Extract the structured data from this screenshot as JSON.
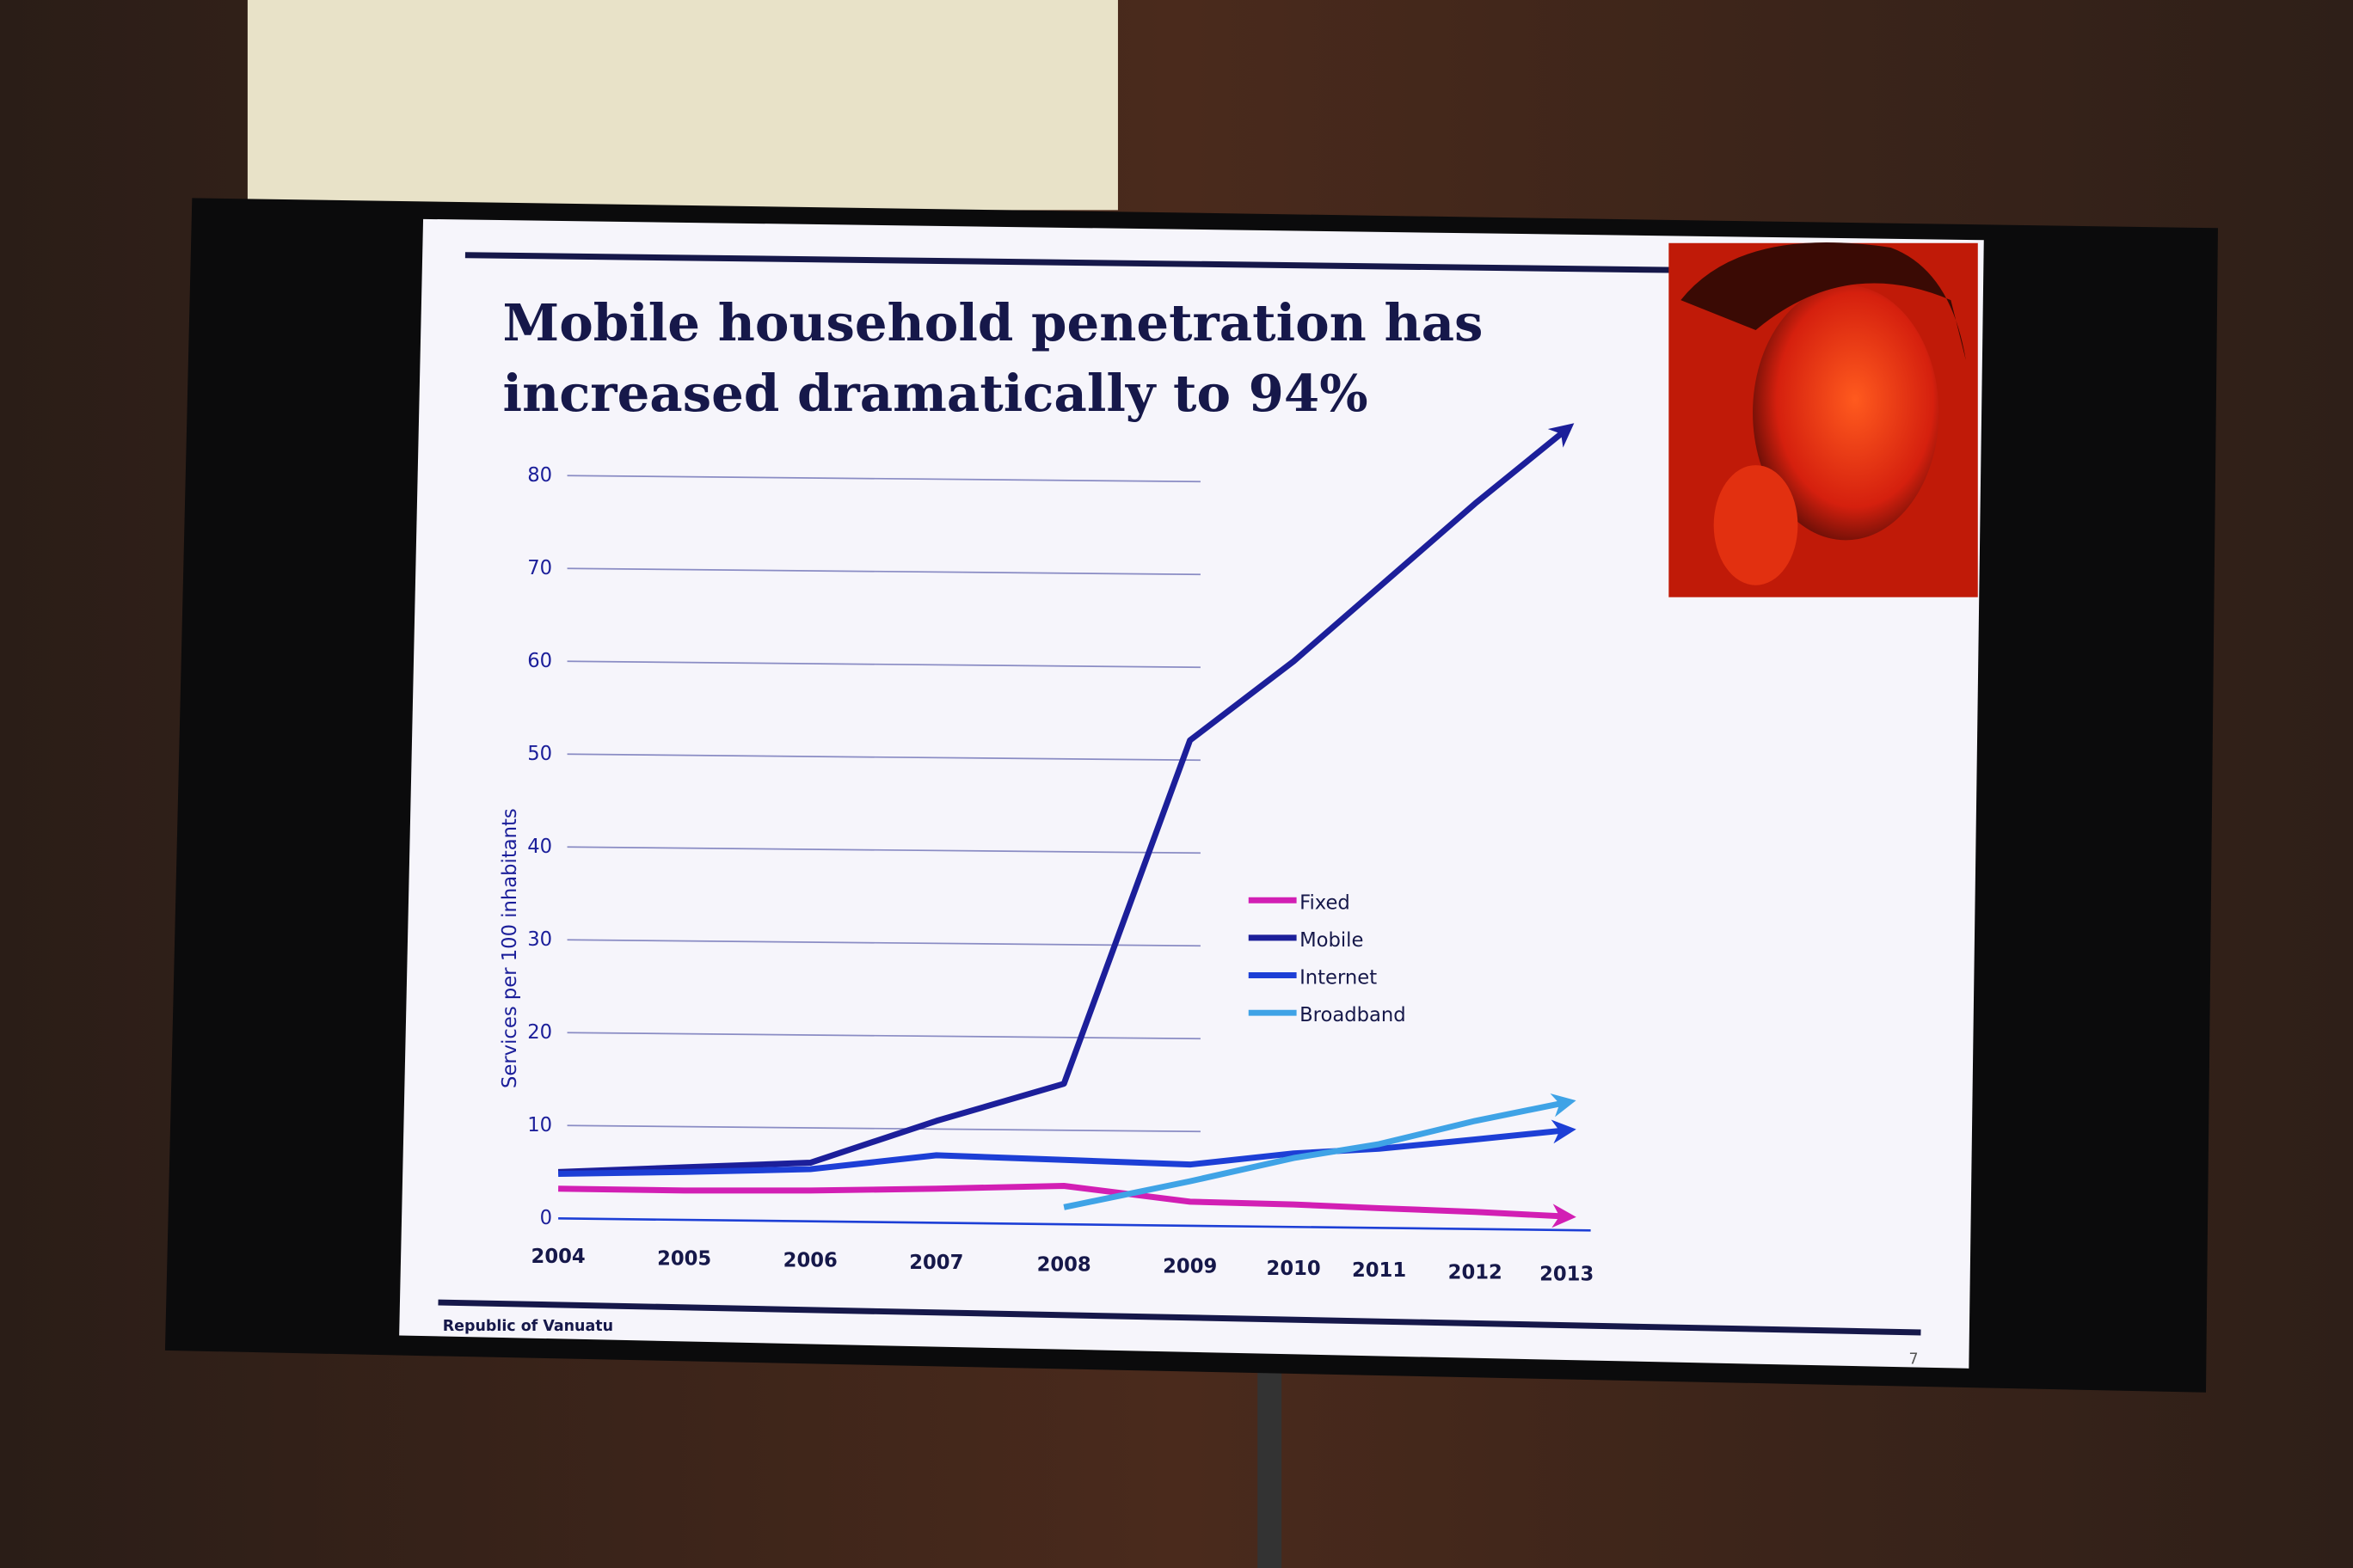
{
  "chart_data": {
    "type": "line",
    "title": "Mobile household penetration has increased dramatically to 94%",
    "y_label": "Services per 100 inhabitants",
    "footer": "Republic of Vanuatu",
    "page_number": "7",
    "categories": [
      "2004",
      "2005",
      "2006",
      "2007",
      "2008",
      "2009",
      "2010",
      "2011",
      "2012",
      "2013"
    ],
    "series": [
      {
        "name": "Fixed",
        "color": "#d21fb4",
        "values": [
          3.2,
          3.0,
          3.0,
          3.2,
          3.5,
          1.8,
          1.5,
          1.1,
          0.7,
          0.2
        ]
      },
      {
        "name": "Mobile",
        "color": "#1c1f9a",
        "values": [
          5,
          5.5,
          6,
          10.5,
          14.5,
          51.5,
          60,
          68,
          77,
          85
        ]
      },
      {
        "name": "Internet",
        "color": "#1d3fd6",
        "values": [
          4.8,
          5,
          5.3,
          6.8,
          6.3,
          5.8,
          7,
          7.5,
          8.5,
          9.5
        ]
      },
      {
        "name": "Broadband",
        "color": "#3fa3e6",
        "values": [
          null,
          null,
          null,
          null,
          1.2,
          4,
          6.5,
          8,
          10.5,
          12.5
        ]
      }
    ],
    "ylim": [
      0,
      80
    ],
    "yticks": [
      0,
      10,
      20,
      30,
      40,
      50,
      60,
      70,
      80
    ],
    "grid": true
  }
}
